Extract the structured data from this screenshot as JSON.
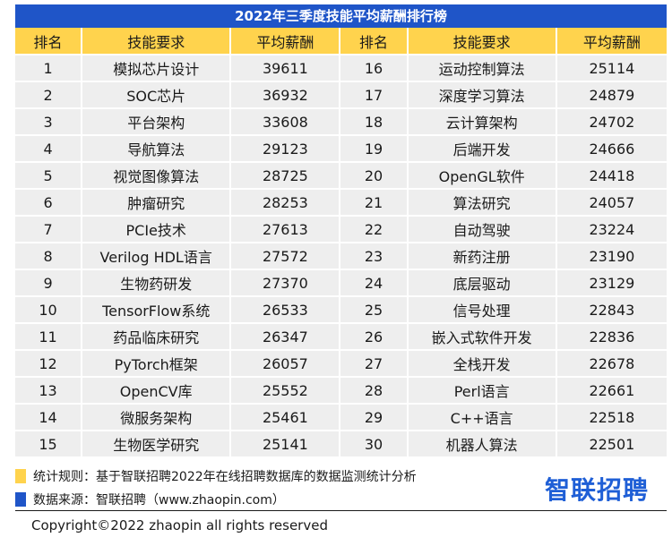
{
  "title": "2022年三季度技能平均薪酬排行榜",
  "headers": [
    "排名",
    "技能要求",
    "平均薪酬",
    "排名",
    "技能要求",
    "平均薪酬"
  ],
  "rows": [
    [
      "1",
      "模拟芯片设计",
      "39611",
      "16",
      "运动控制算法",
      "25114"
    ],
    [
      "2",
      "SOC芯片",
      "36932",
      "17",
      "深度学习算法",
      "24879"
    ],
    [
      "3",
      "平台架构",
      "33608",
      "18",
      "云计算架构",
      "24702"
    ],
    [
      "4",
      "导航算法",
      "29123",
      "19",
      "后端开发",
      "24666"
    ],
    [
      "5",
      "视觉图像算法",
      "28725",
      "20",
      "OpenGL软件",
      "24418"
    ],
    [
      "6",
      "肿瘤研究",
      "28253",
      "21",
      "算法研究",
      "24057"
    ],
    [
      "7",
      "PCIe技术",
      "27613",
      "22",
      "自动驾驶",
      "23224"
    ],
    [
      "8",
      "Verilog HDL语言",
      "27572",
      "23",
      "新药注册",
      "23190"
    ],
    [
      "9",
      "生物药研发",
      "27370",
      "24",
      "底层驱动",
      "23129"
    ],
    [
      "10",
      "TensorFlow系统",
      "26533",
      "25",
      "信号处理",
      "22843"
    ],
    [
      "11",
      "药品临床研究",
      "26347",
      "26",
      "嵌入式软件开发",
      "22836"
    ],
    [
      "12",
      "PyTorch框架",
      "26057",
      "27",
      "全栈开发",
      "22678"
    ],
    [
      "13",
      "OpenCV库",
      "25552",
      "28",
      "Perl语言",
      "22661"
    ],
    [
      "14",
      "微服务架构",
      "25461",
      "29",
      "C++语言",
      "22518"
    ],
    [
      "15",
      "生物医学研究",
      "25141",
      "30",
      "机器人算法",
      "22501"
    ]
  ],
  "notes": {
    "rule": "统计规则：基于智联招聘2022年在线招聘数据库的数据监测统计分析",
    "source": "数据来源：智联招聘（www.zhaopin.com）"
  },
  "logo_text": "智联招聘",
  "copyright": "Copyright©2022 zhaopin all rights reserved",
  "colors": {
    "title_bg": "#1f55c8",
    "header_bg": "#ffd34d",
    "row_bg": "#eeeeee",
    "rule_swatch": "#ffd34d",
    "source_swatch": "#1f55c8",
    "logo": "#1f5fd6"
  }
}
